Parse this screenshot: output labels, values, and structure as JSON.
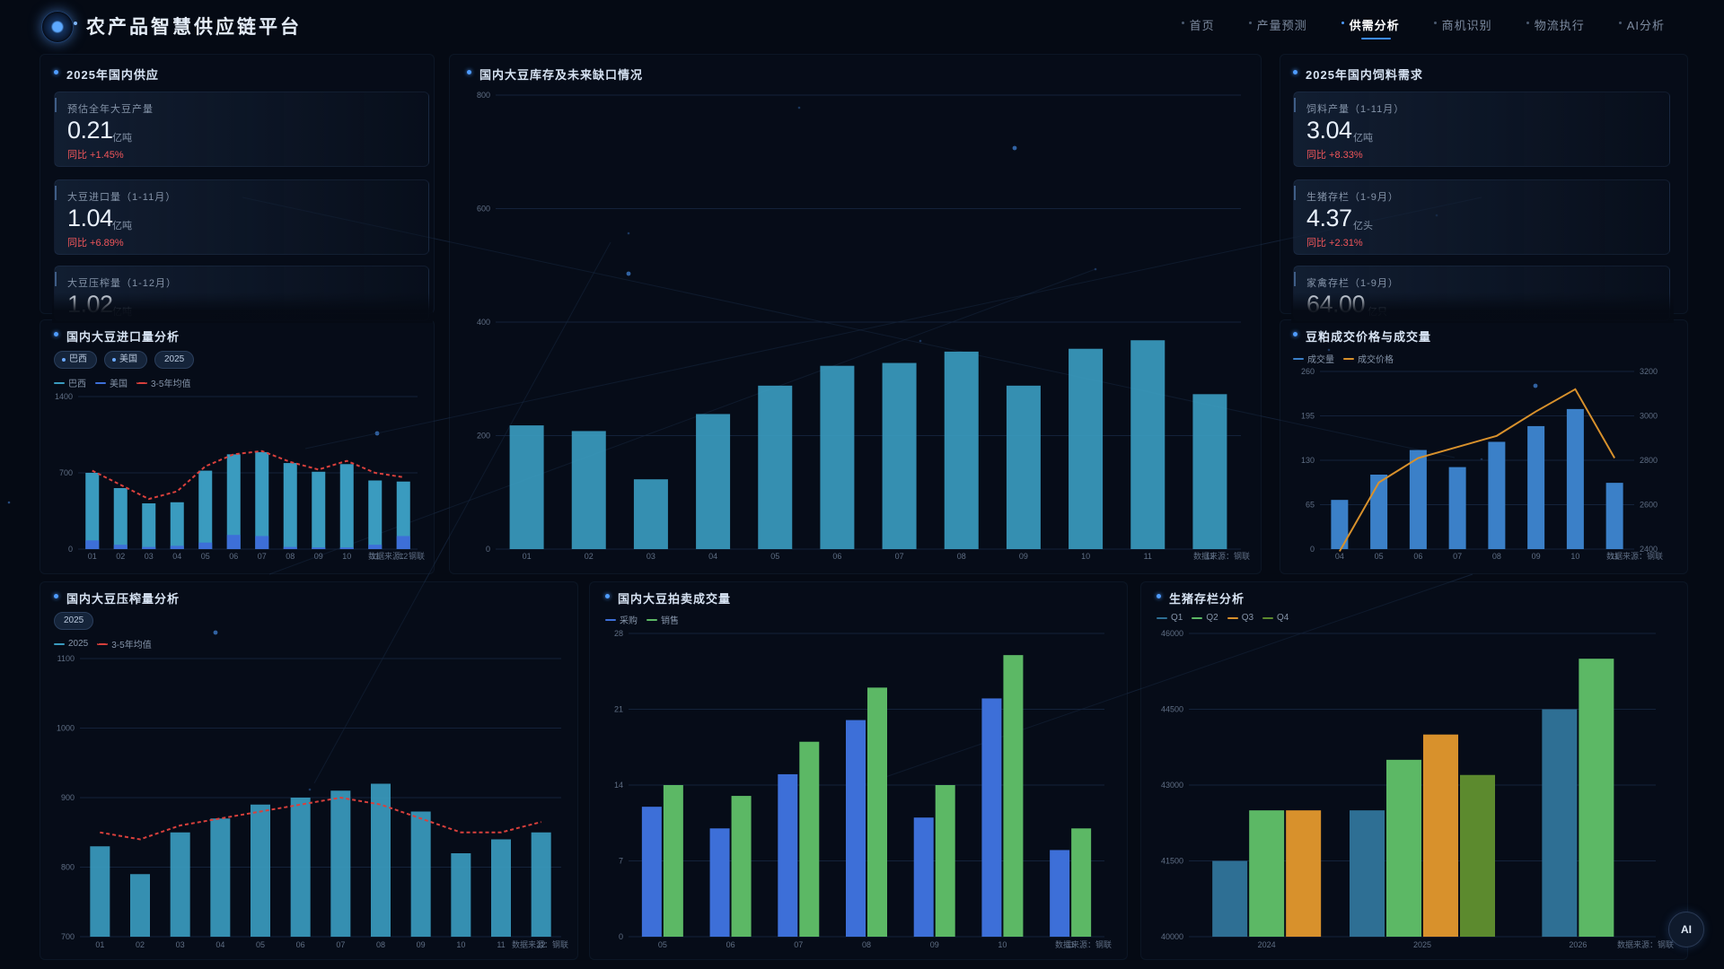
{
  "app": {
    "title": "农产品智慧供应链平台",
    "nav": [
      "首页",
      "产量预测",
      "供需分析",
      "商机识别",
      "物流执行",
      "AI分析"
    ],
    "nav_active": 2,
    "ai_button": "AI"
  },
  "colors": {
    "accent": "#3d8bff",
    "teal_bar": "#3a9bbf",
    "blue_bar": "#3d6fd8",
    "green_bar": "#5cb865",
    "orange": "#d8912c",
    "olive": "#5c8a2e",
    "red_change": "#f0565a",
    "bg": "#050a14"
  },
  "supply": {
    "title": "2025年国内供应",
    "cards": [
      {
        "label": "预估全年大豆产量",
        "value": "0.21",
        "unit": "亿吨",
        "change": "同比 +1.45%"
      },
      {
        "label": "大豆进口量（1-11月）",
        "value": "1.04",
        "unit": "亿吨",
        "change": "同比 +6.89%"
      },
      {
        "label": "大豆压榨量（1-12月）",
        "value": "1.02",
        "unit": "亿吨",
        "change": ""
      }
    ]
  },
  "feed": {
    "title": "2025年国内饲料需求",
    "cards": [
      {
        "label": "饲料产量（1-11月）",
        "value": "3.04",
        "unit": "亿吨",
        "change": "同比 +8.33%"
      },
      {
        "label": "生猪存栏（1-9月）",
        "value": "4.37",
        "unit": "亿头",
        "change": "同比 +2.31%"
      },
      {
        "label": "家禽存栏（1-9月）",
        "value": "64.00",
        "unit": "亿只",
        "change": ""
      }
    ]
  },
  "chips": {
    "import": [
      "巴西",
      "美国",
      "2025"
    ],
    "crush": [
      "2025"
    ]
  },
  "chart_data": [
    {
      "id": "inventory",
      "type": "bar",
      "title": "国内大豆库存及未来缺口情况",
      "categories": [
        "01",
        "02",
        "03",
        "04",
        "05",
        "06",
        "07",
        "08",
        "09",
        "10",
        "11",
        "12"
      ],
      "values": [
        218,
        208,
        123,
        238,
        288,
        323,
        328,
        348,
        288,
        353,
        368,
        273
      ],
      "ylim": [
        0,
        800
      ],
      "yticks": [
        "0",
        "200",
        "400",
        "600",
        "800"
      ],
      "source": "数据来源：钢联",
      "color": "#3a9bbf"
    },
    {
      "id": "import",
      "type": "bar",
      "title": "国内大豆进口量分析",
      "categories": [
        "01",
        "02",
        "03",
        "04",
        "05",
        "06",
        "07",
        "08",
        "09",
        "10",
        "11",
        "12"
      ],
      "series": [
        {
          "name": "巴西",
          "values": [
            700,
            560,
            420,
            430,
            720,
            870,
            890,
            790,
            710,
            780,
            630,
            620
          ],
          "color": "#3a9bbf"
        },
        {
          "name": "美国",
          "values": [
            80,
            40,
            20,
            30,
            60,
            130,
            120,
            20,
            15,
            15,
            40,
            120
          ],
          "color": "#3d6fd8"
        },
        {
          "name": "3-5年均值",
          "values": [
            720,
            590,
            460,
            530,
            760,
            870,
            900,
            800,
            730,
            810,
            700,
            660
          ],
          "color": "#d9403c",
          "style": "dashed"
        }
      ],
      "ylim": [
        0,
        1400
      ],
      "yticks": [
        "0",
        "700",
        "1400"
      ],
      "source": "数据来源：钢联"
    },
    {
      "id": "meal",
      "type": "bar",
      "title": "豆粕成交价格与成交量",
      "categories": [
        "04",
        "05",
        "06",
        "07",
        "08",
        "09",
        "10",
        "11"
      ],
      "series": [
        {
          "name": "成交量",
          "values": [
            72,
            109,
            145,
            120,
            157,
            180,
            205,
            97
          ],
          "color": "#3b80c8"
        },
        {
          "name": "成交价格",
          "values": [
            2390,
            2700,
            2810,
            2860,
            2910,
            3020,
            3120,
            2810
          ],
          "color": "#d8912c",
          "style": "line"
        }
      ],
      "ylim": [
        0,
        260
      ],
      "ylim_right": [
        2400,
        3200
      ],
      "yticks": [
        "0",
        "65",
        "130",
        "195",
        "260"
      ],
      "yticks_right": [
        "2400",
        "2600",
        "2800",
        "3000",
        "3200"
      ],
      "source": "数据来源：钢联"
    },
    {
      "id": "crush",
      "type": "bar",
      "title": "国内大豆压榨量分析",
      "categories": [
        "01",
        "02",
        "03",
        "04",
        "05",
        "06",
        "07",
        "08",
        "09",
        "10",
        "11",
        "12"
      ],
      "series": [
        {
          "name": "2025",
          "values": [
            830,
            790,
            850,
            870,
            890,
            900,
            910,
            920,
            880,
            820,
            840,
            850
          ],
          "color": "#3a9bbf"
        },
        {
          "name": "3-5年均值",
          "values": [
            850,
            840,
            860,
            870,
            880,
            890,
            900,
            890,
            870,
            850,
            850,
            865
          ],
          "color": "#d9403c",
          "style": "dashed"
        }
      ],
      "ylim": [
        700,
        1100
      ],
      "yticks": [
        "700",
        "800",
        "900",
        "1000",
        "1100"
      ],
      "source": "数据来源：钢联"
    },
    {
      "id": "auction",
      "type": "bar",
      "title": "国内大豆拍卖成交量",
      "categories": [
        "05",
        "06",
        "07",
        "08",
        "09",
        "10",
        "11"
      ],
      "series": [
        {
          "name": "采购",
          "values": [
            12,
            10,
            15,
            20,
            11,
            22,
            8
          ],
          "color": "#3d6fd8"
        },
        {
          "name": "销售",
          "values": [
            14,
            13,
            18,
            23,
            14,
            26,
            10
          ],
          "color": "#5cb865"
        }
      ],
      "ylim": [
        0,
        28
      ],
      "yticks": [
        "0",
        "7",
        "14",
        "21",
        "28"
      ],
      "source": "数据来源：钢联"
    },
    {
      "id": "hog",
      "type": "bar",
      "title": "生猪存栏分析",
      "categories": [
        "2024",
        "2025",
        "2026"
      ],
      "series": [
        {
          "name": "Q1",
          "values": [
            41500,
            42500,
            44500
          ],
          "color": "#2e6f94"
        },
        {
          "name": "Q2",
          "values": [
            42500,
            43500,
            45500
          ],
          "color": "#5cb865"
        },
        {
          "name": "Q3",
          "values": [
            42500,
            44000,
            null
          ],
          "color": "#d8912c"
        },
        {
          "name": "Q4",
          "values": [
            null,
            43200,
            null
          ],
          "color": "#5c8a2e"
        }
      ],
      "ylim": [
        40000,
        46000
      ],
      "yticks": [
        "40000",
        "41500",
        "43000",
        "44500",
        "46000"
      ],
      "source": "数据来源：钢联"
    }
  ]
}
